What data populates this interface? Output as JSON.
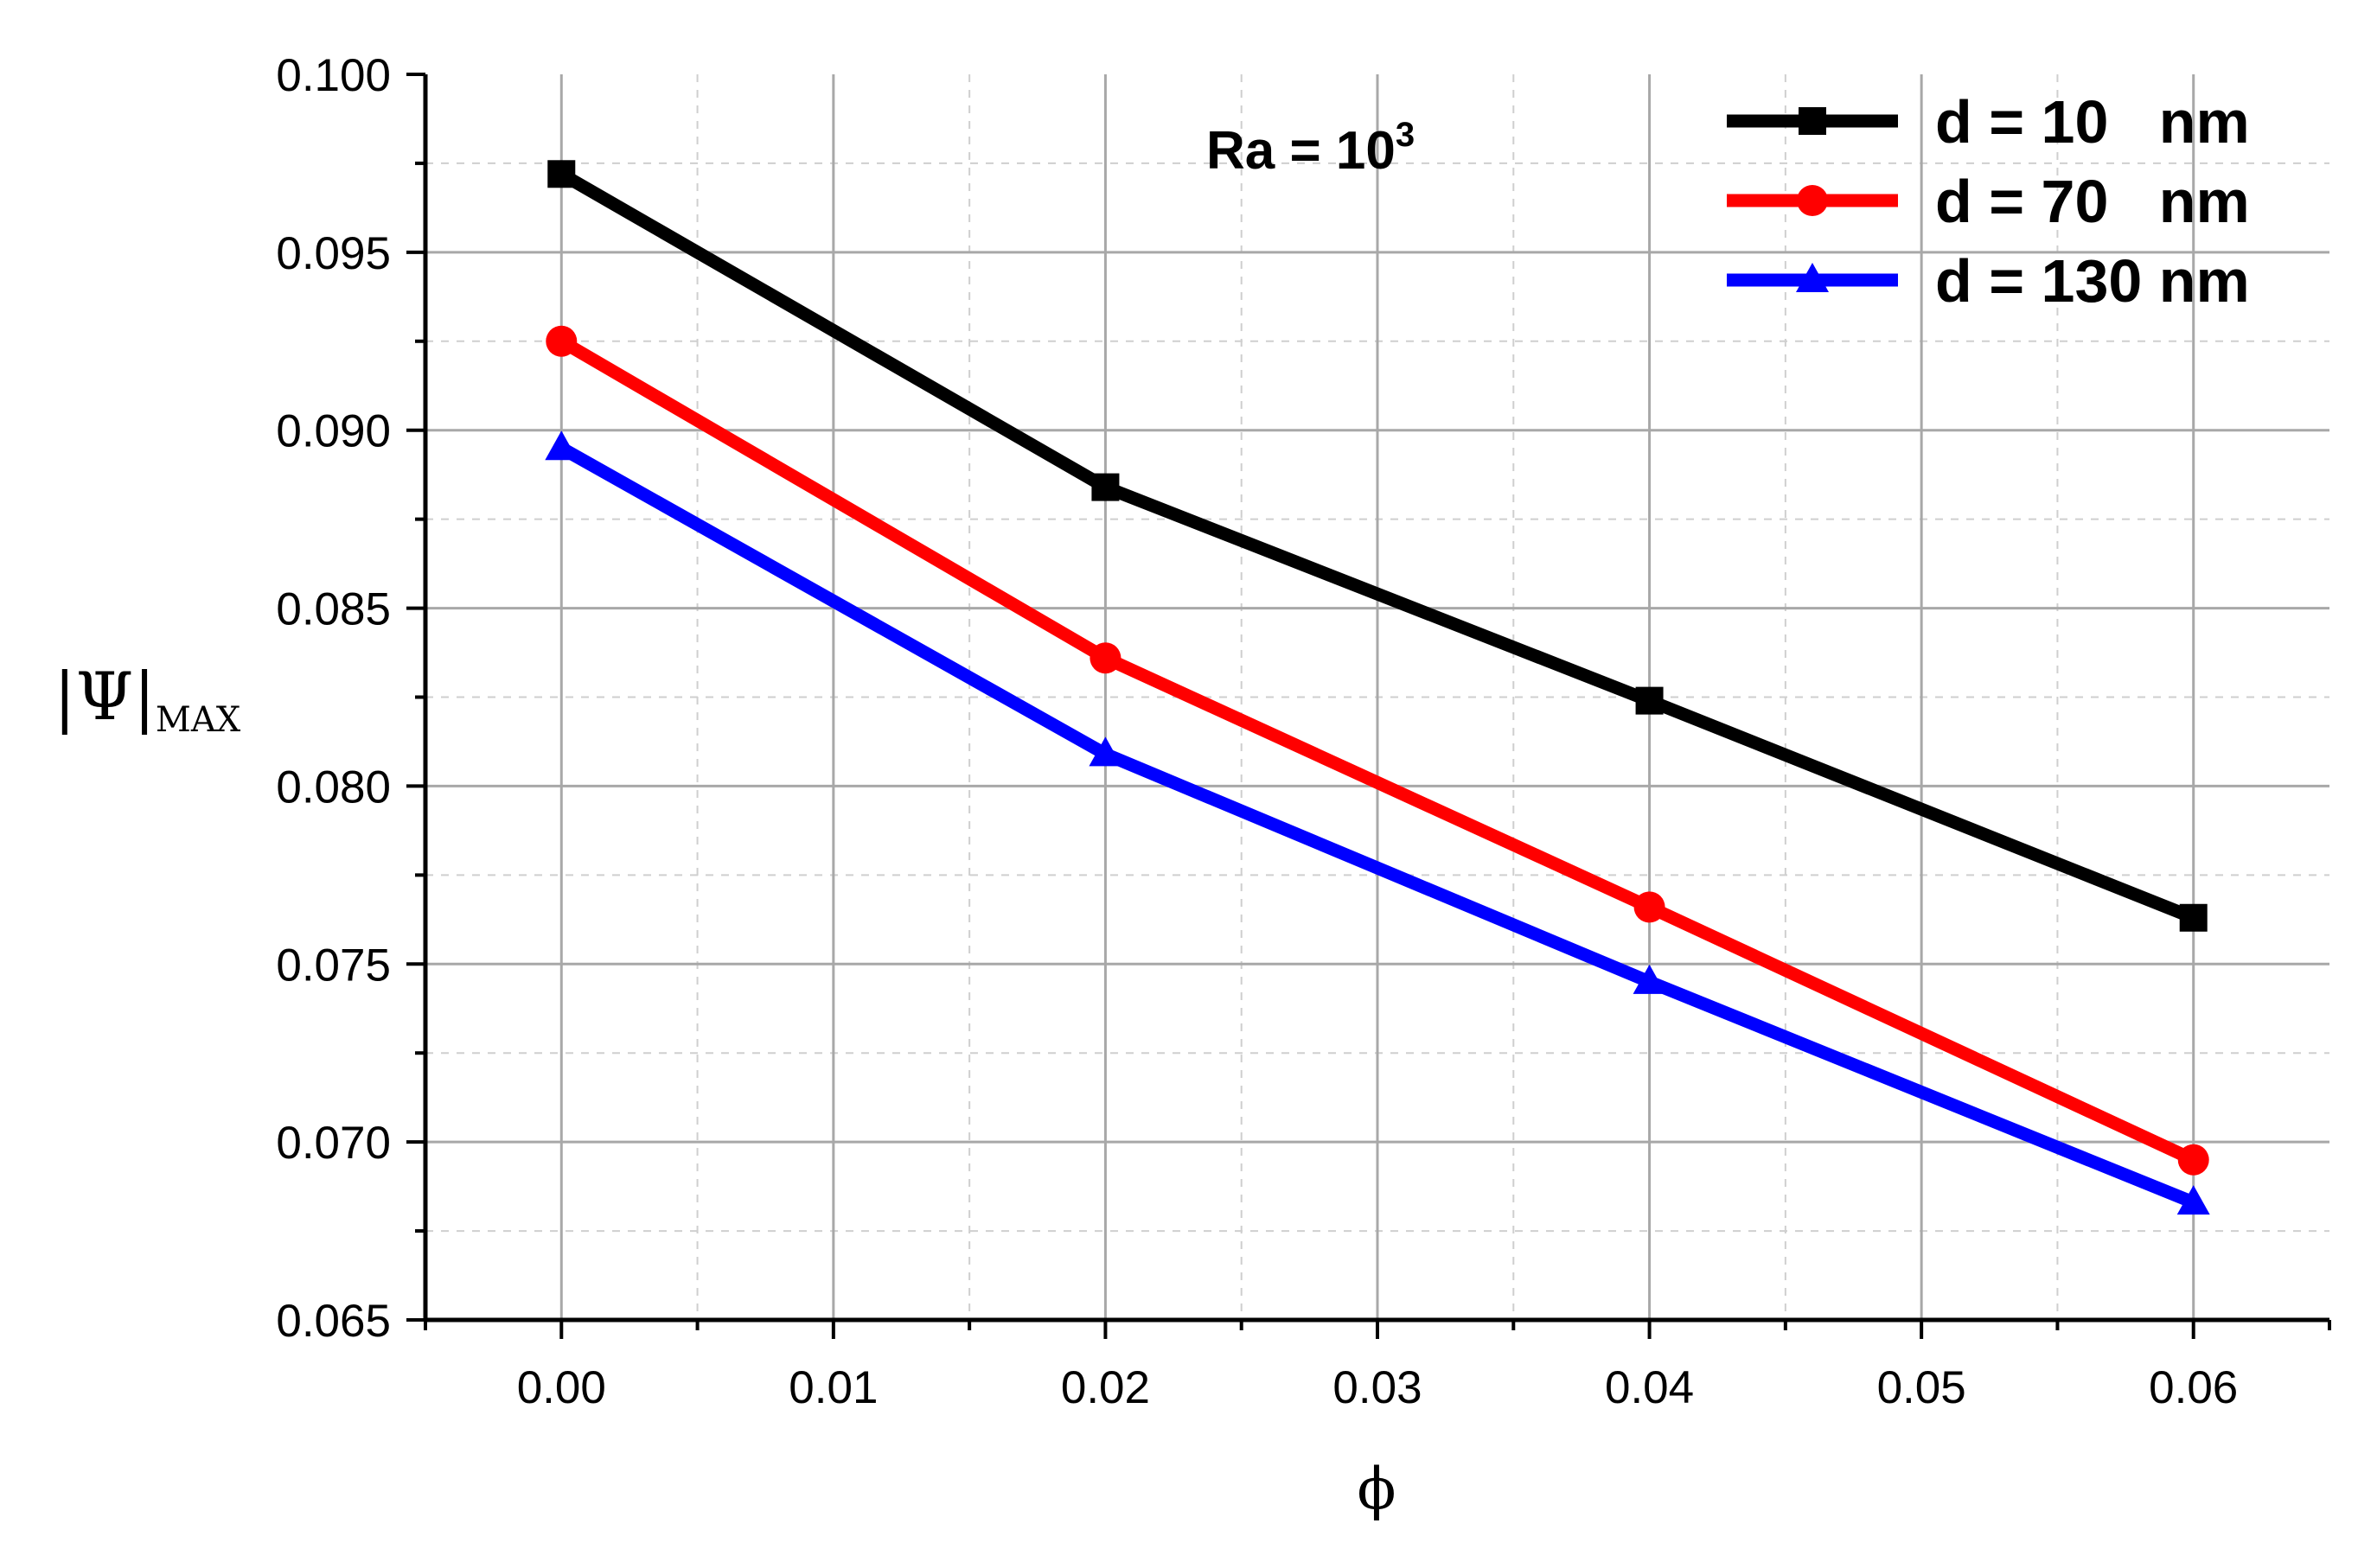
{
  "chart_data": {
    "type": "line",
    "title": "",
    "xlabel": "ϕ",
    "ylabel": "|Ψ|",
    "ylabel_subscript": "MAX",
    "xlim": [
      -0.005,
      0.065
    ],
    "ylim": [
      0.065,
      0.1
    ],
    "xticks": [
      0.0,
      0.01,
      0.02,
      0.03,
      0.04,
      0.05,
      0.06
    ],
    "xtick_labels": [
      "0.00",
      "0.01",
      "0.02",
      "0.03",
      "0.04",
      "0.05",
      "0.06"
    ],
    "yticks": [
      0.065,
      0.07,
      0.075,
      0.08,
      0.085,
      0.09,
      0.095,
      0.1
    ],
    "ytick_labels": [
      "0.065",
      "0.070",
      "0.075",
      "0.080",
      "0.085",
      "0.090",
      "0.095",
      "0.100"
    ],
    "grid": true,
    "legend_position": "top-right",
    "annotation": {
      "base": "Ra = 10",
      "superscript": "3"
    },
    "x": [
      0.0,
      0.02,
      0.04,
      0.06
    ],
    "series": [
      {
        "name": "d = 10   nm",
        "color": "#000000",
        "marker": "square",
        "values": [
          0.0972,
          0.0884,
          0.0824,
          0.0763
        ]
      },
      {
        "name": "d = 70   nm",
        "color": "#ff0000",
        "marker": "circle",
        "values": [
          0.0925,
          0.0836,
          0.0766,
          0.0695
        ]
      },
      {
        "name": "d = 130 nm",
        "color": "#0000ff",
        "marker": "triangle",
        "values": [
          0.0895,
          0.0809,
          0.0745,
          0.0683
        ]
      }
    ]
  }
}
